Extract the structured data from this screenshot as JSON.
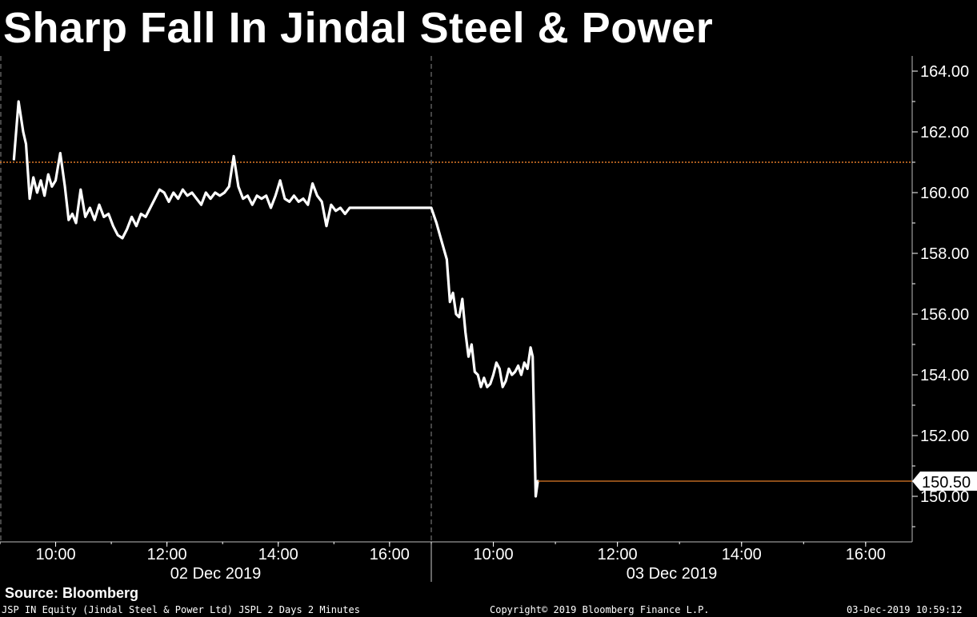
{
  "title": "Sharp Fall In Jindal Steel & Power",
  "footer": {
    "source": "Source: Bloomberg",
    "ticker_info": "JSP IN Equity (Jindal Steel & Power Ltd) JSPL 2 Days 2 Minutes",
    "copyright": "Copyright© 2019 Bloomberg Finance L.P.",
    "timestamp": "03-Dec-2019 10:59:12"
  },
  "colors": {
    "background": "#000000",
    "line": "#ffffff",
    "reference_line": "#e07b28",
    "last_price_line": "#e07b28"
  },
  "chart_data": {
    "type": "line",
    "title": "Sharp Fall In Jindal Steel & Power",
    "xlabel": "",
    "ylabel": "",
    "ylim": [
      148.5,
      164.5
    ],
    "y_ticks": [
      "164.00",
      "162.00",
      "160.00",
      "158.00",
      "156.00",
      "154.00",
      "152.00",
      "150.00"
    ],
    "y_tick_values": [
      164,
      162,
      160,
      158,
      156,
      154,
      152,
      150
    ],
    "reference_level": 161.0,
    "last_price": 150.5,
    "last_price_label": "150.50",
    "days": [
      {
        "label": "02 Dec 2019",
        "tick_labels": [
          "10:00",
          "12:00",
          "14:00",
          "16:00"
        ],
        "tick_hours": [
          10,
          12,
          14,
          16
        ]
      },
      {
        "label": "03 Dec 2019",
        "tick_labels": [
          "10:00",
          "12:00",
          "14:00",
          "16:00"
        ],
        "tick_hours": [
          10,
          12,
          14,
          16
        ]
      }
    ],
    "series": [
      {
        "values": [
          [
            "02-12 09:15",
            161.1
          ],
          [
            "02-12 09:20",
            163.0
          ],
          [
            "02-12 09:25",
            162.0
          ],
          [
            "02-12 09:28",
            161.6
          ],
          [
            "02-12 09:32",
            159.8
          ],
          [
            "02-12 09:36",
            160.5
          ],
          [
            "02-12 09:40",
            160.0
          ],
          [
            "02-12 09:44",
            160.4
          ],
          [
            "02-12 09:48",
            159.9
          ],
          [
            "02-12 09:52",
            160.6
          ],
          [
            "02-12 09:56",
            160.2
          ],
          [
            "02-12 10:00",
            160.4
          ],
          [
            "02-12 10:05",
            161.3
          ],
          [
            "02-12 10:10",
            160.2
          ],
          [
            "02-12 10:14",
            159.1
          ],
          [
            "02-12 10:18",
            159.3
          ],
          [
            "02-12 10:22",
            159.0
          ],
          [
            "02-12 10:27",
            160.1
          ],
          [
            "02-12 10:32",
            159.2
          ],
          [
            "02-12 10:37",
            159.5
          ],
          [
            "02-12 10:42",
            159.1
          ],
          [
            "02-12 10:47",
            159.6
          ],
          [
            "02-12 10:52",
            159.2
          ],
          [
            "02-12 10:57",
            159.3
          ],
          [
            "02-12 11:02",
            158.9
          ],
          [
            "02-12 11:07",
            158.6
          ],
          [
            "02-12 11:12",
            158.5
          ],
          [
            "02-12 11:17",
            158.8
          ],
          [
            "02-12 11:22",
            159.2
          ],
          [
            "02-12 11:27",
            158.9
          ],
          [
            "02-12 11:32",
            159.3
          ],
          [
            "02-12 11:37",
            159.2
          ],
          [
            "02-12 11:42",
            159.5
          ],
          [
            "02-12 11:47",
            159.8
          ],
          [
            "02-12 11:52",
            160.1
          ],
          [
            "02-12 11:57",
            160.0
          ],
          [
            "02-12 12:02",
            159.7
          ],
          [
            "02-12 12:07",
            160.0
          ],
          [
            "02-12 12:12",
            159.8
          ],
          [
            "02-12 12:17",
            160.1
          ],
          [
            "02-12 12:22",
            159.9
          ],
          [
            "02-12 12:27",
            160.0
          ],
          [
            "02-12 12:32",
            159.8
          ],
          [
            "02-12 12:37",
            159.6
          ],
          [
            "02-12 12:42",
            160.0
          ],
          [
            "02-12 12:47",
            159.8
          ],
          [
            "02-12 12:52",
            160.0
          ],
          [
            "02-12 12:57",
            159.9
          ],
          [
            "02-12 13:02",
            160.0
          ],
          [
            "02-12 13:07",
            160.2
          ],
          [
            "02-12 13:12",
            161.2
          ],
          [
            "02-12 13:17",
            160.2
          ],
          [
            "02-12 13:22",
            159.8
          ],
          [
            "02-12 13:27",
            159.9
          ],
          [
            "02-12 13:32",
            159.6
          ],
          [
            "02-12 13:37",
            159.9
          ],
          [
            "02-12 13:42",
            159.8
          ],
          [
            "02-12 13:47",
            159.9
          ],
          [
            "02-12 13:52",
            159.5
          ],
          [
            "02-12 13:57",
            159.9
          ],
          [
            "02-12 14:02",
            160.4
          ],
          [
            "02-12 14:07",
            159.8
          ],
          [
            "02-12 14:12",
            159.7
          ],
          [
            "02-12 14:17",
            159.9
          ],
          [
            "02-12 14:22",
            159.7
          ],
          [
            "02-12 14:27",
            159.8
          ],
          [
            "02-12 14:32",
            159.6
          ],
          [
            "02-12 14:37",
            160.3
          ],
          [
            "02-12 14:42",
            159.9
          ],
          [
            "02-12 14:47",
            159.7
          ],
          [
            "02-12 14:52",
            158.9
          ],
          [
            "02-12 14:57",
            159.6
          ],
          [
            "02-12 15:02",
            159.4
          ],
          [
            "02-12 15:07",
            159.5
          ],
          [
            "02-12 15:12",
            159.3
          ],
          [
            "02-12 15:17",
            159.5
          ],
          [
            "02-12 15:22",
            159.5
          ],
          [
            "02-12 15:30",
            159.5
          ],
          [
            "02-12 16:00",
            159.5
          ],
          [
            "02-12 16:30",
            159.5
          ],
          [
            "03-12 09:00",
            159.5
          ],
          [
            "03-12 09:05",
            159.0
          ],
          [
            "03-12 09:10",
            158.4
          ],
          [
            "03-12 09:15",
            157.8
          ],
          [
            "03-12 09:18",
            156.4
          ],
          [
            "03-12 09:21",
            156.7
          ],
          [
            "03-12 09:24",
            156.0
          ],
          [
            "03-12 09:27",
            155.9
          ],
          [
            "03-12 09:30",
            156.5
          ],
          [
            "03-12 09:33",
            155.4
          ],
          [
            "03-12 09:36",
            154.6
          ],
          [
            "03-12 09:39",
            155.0
          ],
          [
            "03-12 09:42",
            154.1
          ],
          [
            "03-12 09:45",
            154.0
          ],
          [
            "03-12 09:48",
            153.6
          ],
          [
            "03-12 09:51",
            153.9
          ],
          [
            "03-12 09:54",
            153.6
          ],
          [
            "03-12 09:57",
            153.7
          ],
          [
            "03-12 10:00",
            154.0
          ],
          [
            "03-12 10:03",
            154.4
          ],
          [
            "03-12 10:06",
            154.2
          ],
          [
            "03-12 10:09",
            153.6
          ],
          [
            "03-12 10:12",
            153.8
          ],
          [
            "03-12 10:15",
            154.2
          ],
          [
            "03-12 10:18",
            154.0
          ],
          [
            "03-12 10:21",
            154.1
          ],
          [
            "03-12 10:24",
            154.3
          ],
          [
            "03-12 10:27",
            154.0
          ],
          [
            "03-12 10:30",
            154.4
          ],
          [
            "03-12 10:33",
            154.2
          ],
          [
            "03-12 10:36",
            154.9
          ],
          [
            "03-12 10:38",
            154.6
          ],
          [
            "03-12 10:41",
            150.0
          ],
          [
            "03-12 10:43",
            150.5
          ]
        ]
      }
    ],
    "grid": false,
    "legend": "none"
  }
}
